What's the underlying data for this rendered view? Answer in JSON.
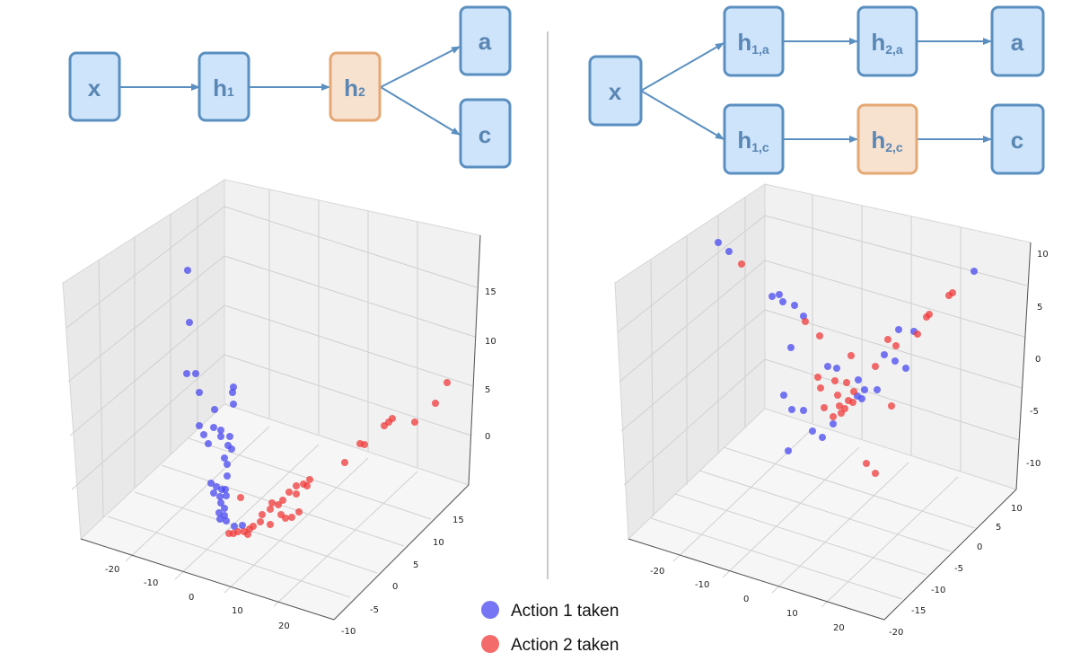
{
  "colors": {
    "node_fill": "#cde4fb",
    "node_stroke": "#5a8fc0",
    "highlight_fill": "#f7e1cf",
    "highlight_stroke": "#e4a874",
    "arrow": "#5a8fc0",
    "action1": "#4848f0",
    "action2": "#f03a3a",
    "divider": "#b8b8b8"
  },
  "left_diagram": {
    "nodes": [
      {
        "id": "x",
        "main": "x",
        "sub": "",
        "highlight": false
      },
      {
        "id": "h1",
        "main": "h",
        "sub": "1",
        "highlight": false
      },
      {
        "id": "h2",
        "main": "h",
        "sub": "2",
        "highlight": true
      },
      {
        "id": "a",
        "main": "a",
        "sub": "",
        "highlight": false
      },
      {
        "id": "c",
        "main": "c",
        "sub": "",
        "highlight": false
      }
    ]
  },
  "right_diagram": {
    "nodes": [
      {
        "id": "x",
        "main": "x",
        "sub": "",
        "highlight": false
      },
      {
        "id": "h1a",
        "main": "h",
        "sub": "1,a",
        "highlight": false
      },
      {
        "id": "h2a",
        "main": "h",
        "sub": "2,a",
        "highlight": false
      },
      {
        "id": "a",
        "main": "a",
        "sub": "",
        "highlight": false
      },
      {
        "id": "h1c",
        "main": "h",
        "sub": "1,c",
        "highlight": false
      },
      {
        "id": "h2c",
        "main": "h",
        "sub": "2,c",
        "highlight": true
      },
      {
        "id": "c",
        "main": "c",
        "sub": "",
        "highlight": false
      }
    ]
  },
  "left_plot": {
    "x_ticks": [
      "-20",
      "-10",
      "0",
      "10",
      "20"
    ],
    "y_ticks": [
      "-10",
      "-5",
      "0",
      "5",
      "10",
      "15"
    ],
    "z_ticks": [
      "0",
      "5",
      "10",
      "15"
    ]
  },
  "right_plot": {
    "x_ticks": [
      "-20",
      "-10",
      "0",
      "10",
      "20"
    ],
    "y_ticks": [
      "-20",
      "-15",
      "-10",
      "-5",
      "0",
      "5",
      "10"
    ],
    "z_ticks": [
      "-10",
      "-5",
      "0",
      "5",
      "10"
    ]
  },
  "legend": {
    "action1_label": "Action 1 taken",
    "action2_label": "Action 2 taken"
  }
}
